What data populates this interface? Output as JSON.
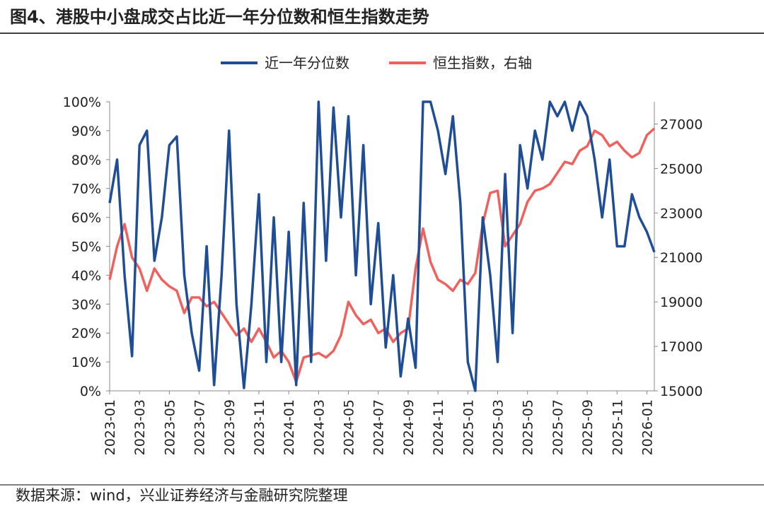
{
  "chart_data": {
    "type": "line",
    "title": "图4、港股中小盘成交占比近一年分位数和恒生指数走势",
    "source": "数据来源：wind，兴业证券经济与金融研究院整理",
    "xlim": [
      0,
      73
    ],
    "xticks": [
      {
        "value": 0,
        "label": "2023-01"
      },
      {
        "value": 4,
        "label": "2023-03"
      },
      {
        "value": 8,
        "label": "2023-05"
      },
      {
        "value": 12,
        "label": "2023-07"
      },
      {
        "value": 16,
        "label": "2023-09"
      },
      {
        "value": 20,
        "label": "2023-11"
      },
      {
        "value": 24,
        "label": "2024-01"
      },
      {
        "value": 28,
        "label": "2024-03"
      },
      {
        "value": 32,
        "label": "2024-05"
      },
      {
        "value": 36,
        "label": "2024-07"
      },
      {
        "value": 40,
        "label": "2024-09"
      },
      {
        "value": 44,
        "label": "2024-11"
      },
      {
        "value": 48,
        "label": "2025-01"
      },
      {
        "value": 52,
        "label": "2025-03"
      },
      {
        "value": 56,
        "label": "2025-05"
      },
      {
        "value": 60,
        "label": "2025-07"
      },
      {
        "value": 64,
        "label": "2025-09"
      },
      {
        "value": 68,
        "label": "2025-11"
      },
      {
        "value": 72,
        "label": "2026-01"
      }
    ],
    "ylim": [
      0,
      100
    ],
    "yticks": [
      {
        "value": 0,
        "label": "0%"
      },
      {
        "value": 10,
        "label": "10%"
      },
      {
        "value": 20,
        "label": "20%"
      },
      {
        "value": 30,
        "label": "30%"
      },
      {
        "value": 40,
        "label": "40%"
      },
      {
        "value": 50,
        "label": "50%"
      },
      {
        "value": 60,
        "label": "60%"
      },
      {
        "value": 70,
        "label": "70%"
      },
      {
        "value": 80,
        "label": "80%"
      },
      {
        "value": 90,
        "label": "90%"
      },
      {
        "value": 100,
        "label": "100%"
      }
    ],
    "y2lim": [
      15000,
      28000
    ],
    "y2ticks": [
      15000,
      17000,
      19000,
      21000,
      23000,
      25000,
      27000
    ],
    "legend": "top",
    "series": [
      {
        "name": "近一年分位数",
        "color": "#1f4e96",
        "values": [
          65,
          80,
          40,
          12,
          85,
          90,
          45,
          60,
          85,
          88,
          40,
          20,
          7,
          50,
          2,
          40,
          90,
          30,
          1,
          30,
          68,
          10,
          60,
          10,
          55,
          2,
          65,
          10,
          100,
          45,
          98,
          60,
          95,
          40,
          85,
          30,
          58,
          15,
          40,
          5,
          25,
          8,
          100,
          100,
          90,
          75,
          95,
          65,
          10,
          0,
          60,
          40,
          10,
          75,
          20,
          85,
          70,
          90,
          80,
          100,
          95,
          100,
          90,
          100,
          95,
          80,
          60,
          80,
          50,
          50,
          68,
          60,
          55,
          48
        ]
      },
      {
        "name": "恒生指数，右轴",
        "color": "#f0605d",
        "axis": "y2",
        "values": [
          20000,
          21500,
          22500,
          21000,
          20500,
          19500,
          20500,
          20000,
          19700,
          19500,
          18500,
          19200,
          19200,
          18800,
          19000,
          18500,
          18000,
          17500,
          17800,
          17200,
          17800,
          17200,
          16500,
          16800,
          16300,
          15400,
          16500,
          16600,
          16700,
          16500,
          16800,
          17500,
          19000,
          18400,
          18000,
          18200,
          17600,
          17800,
          17200,
          17600,
          17800,
          20500,
          22300,
          20800,
          20000,
          19800,
          19500,
          20000,
          19800,
          20300,
          22500,
          23900,
          24000,
          21500,
          22000,
          22500,
          23500,
          24000,
          24100,
          24300,
          24800,
          25300,
          25200,
          25800,
          26000,
          26700,
          26500,
          26000,
          26200,
          25800,
          25500,
          25700,
          26500,
          26800
        ]
      }
    ]
  }
}
